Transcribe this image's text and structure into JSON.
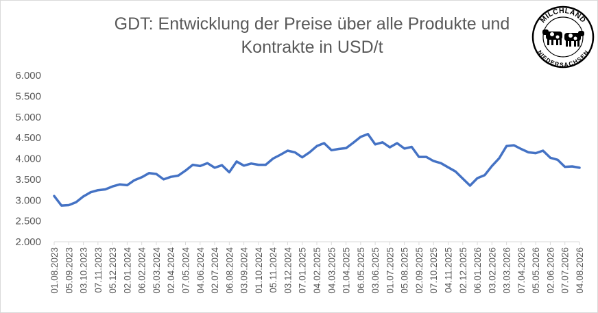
{
  "title": "GDT: Entwicklung der Preise über alle Produkte und\nKontrakte in USD/t",
  "logo": {
    "top_text": "MILCHLAND",
    "bottom_text": "NIEDERSACHSEN",
    "icon": "cows-logo-icon"
  },
  "colors": {
    "line": "#4472C4",
    "axis": "#d9d9d9",
    "text": "#595959"
  },
  "chart_data": {
    "type": "line",
    "title": "GDT: Entwicklung der Preise über alle Produkte und Kontrakte in USD/t",
    "xlabel": "",
    "ylabel": "",
    "ylim": [
      2000,
      6000
    ],
    "grid": false,
    "y_ticks": [
      "2.000",
      "2.500",
      "3.000",
      "3.500",
      "4.000",
      "4.500",
      "5.000",
      "5.500",
      "6.000"
    ],
    "x_tick_labels": [
      "01.08.2023",
      "05.09.2023",
      "03.10.2023",
      "07.11.2023",
      "05.12.2023",
      "02.01.2024",
      "06.02.2024",
      "05.03.2024",
      "02.04.2024",
      "07.05.2024",
      "04.06.2024",
      "02.07.2024",
      "06.08.2024",
      "03.09.2024",
      "01.10.2024",
      "05.11.2024",
      "03.12.2024",
      "07.01.2025",
      "04.02.2025",
      "04.03.2025",
      "01.04.2025",
      "06.05.2025",
      "03.06.2025",
      "01.07.2025",
      "05.08.2025",
      "02.09.2025",
      "07.10.2025",
      "04.11.2025",
      "02.12.2025",
      "06.01.2026",
      "03.02.2026",
      "03.03.2026",
      "07.04.2026",
      "05.05.2026",
      "02.06.2026",
      "07.07.2026",
      "04.08.2026"
    ],
    "series": [
      {
        "values": [
          3100,
          2870,
          2880,
          2950,
          3090,
          3190,
          3240,
          3260,
          3330,
          3380,
          3360,
          3480,
          3550,
          3650,
          3630,
          3500,
          3560,
          3590,
          3710,
          3850,
          3820,
          3890,
          3780,
          3840,
          3670,
          3930,
          3830,
          3880,
          3850,
          3850,
          4000,
          4090,
          4190,
          4150,
          4030,
          4150,
          4300,
          4370,
          4200,
          4230,
          4250,
          4380,
          4520,
          4590,
          4340,
          4390,
          4270,
          4370,
          4240,
          4280,
          4040,
          4040,
          3940,
          3890,
          3790,
          3690,
          3520,
          3350,
          3530,
          3600,
          3820,
          4010,
          4300,
          4320,
          4230,
          4150,
          4130,
          4190,
          4020,
          3970,
          3800,
          3810,
          3780
        ]
      }
    ]
  }
}
